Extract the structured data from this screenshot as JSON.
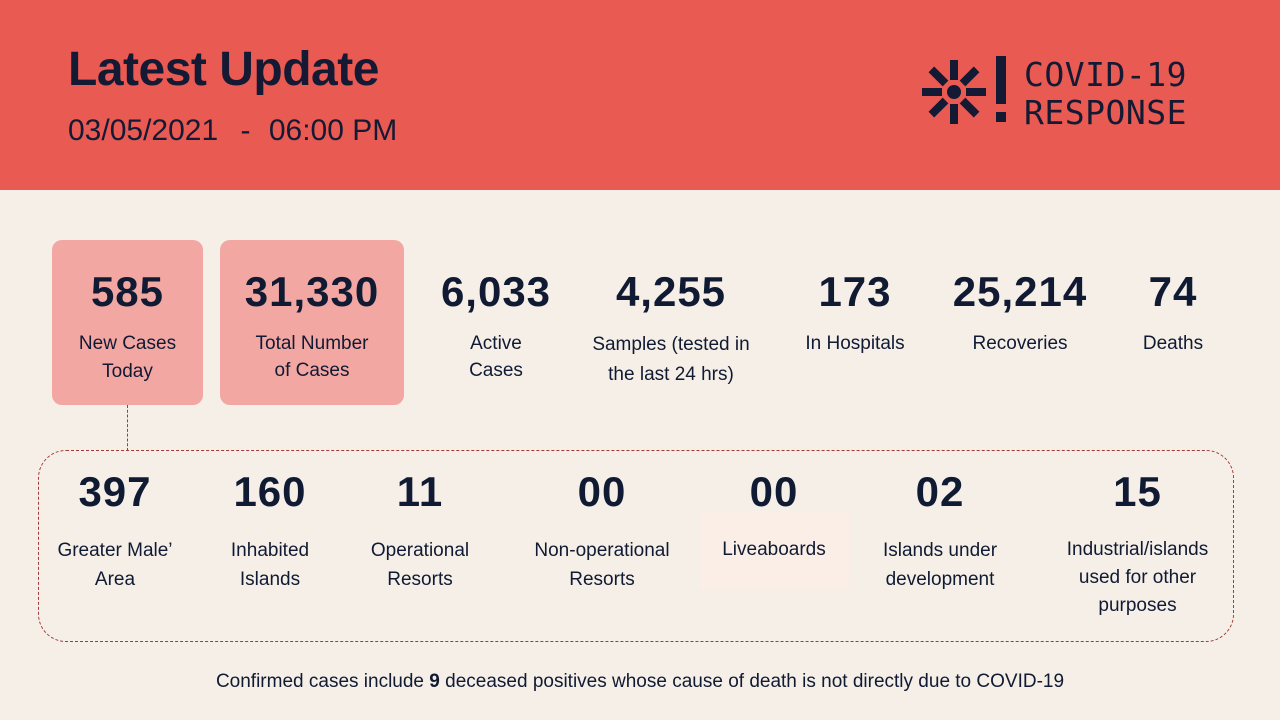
{
  "header": {
    "title": "Latest Update",
    "date": "03/05/2021",
    "separator": "-",
    "time": "06:00 PM",
    "logo_line1": "COVID-19",
    "logo_line2": "RESPONSE"
  },
  "stats": [
    {
      "value": "585",
      "label1": "New Cases",
      "label2": "Today"
    },
    {
      "value": "31,330",
      "label1": "Total Number",
      "label2": "of Cases"
    },
    {
      "value": "6,033",
      "label1": "Active",
      "label2": "Cases"
    },
    {
      "value": "4,255",
      "label1": "Samples (tested in",
      "label2": "the last 24 hrs)"
    },
    {
      "value": "173",
      "label1": "In Hospitals",
      "label2": ""
    },
    {
      "value": "25,214",
      "label1": "Recoveries",
      "label2": ""
    },
    {
      "value": "74",
      "label1": "Deaths",
      "label2": ""
    }
  ],
  "breakdown": [
    {
      "value": "397",
      "label1": "Greater Male’",
      "label2": "Area",
      "label3": ""
    },
    {
      "value": "160",
      "label1": "Inhabited",
      "label2": "Islands",
      "label3": ""
    },
    {
      "value": "11",
      "label1": "Operational",
      "label2": "Resorts",
      "label3": ""
    },
    {
      "value": "00",
      "label1": "Non-operational",
      "label2": "Resorts",
      "label3": ""
    },
    {
      "value": "00",
      "label1": "Liveaboards",
      "label2": "",
      "label3": ""
    },
    {
      "value": "02",
      "label1": "Islands under",
      "label2": "development",
      "label3": ""
    },
    {
      "value": "15",
      "label1": "Industrial/islands",
      "label2": "used for other",
      "label3": "purposes"
    }
  ],
  "footnote": {
    "prefix": "Confirmed cases include",
    "count": "9",
    "suffix": "deceased positives whose cause of death is not directly due to COVID-19"
  },
  "colors": {
    "header_bg": "#e85a52",
    "page_bg": "#f5efe7",
    "highlight": "#f2a7a3",
    "text": "#101a33",
    "dashed": "#a33a38"
  }
}
